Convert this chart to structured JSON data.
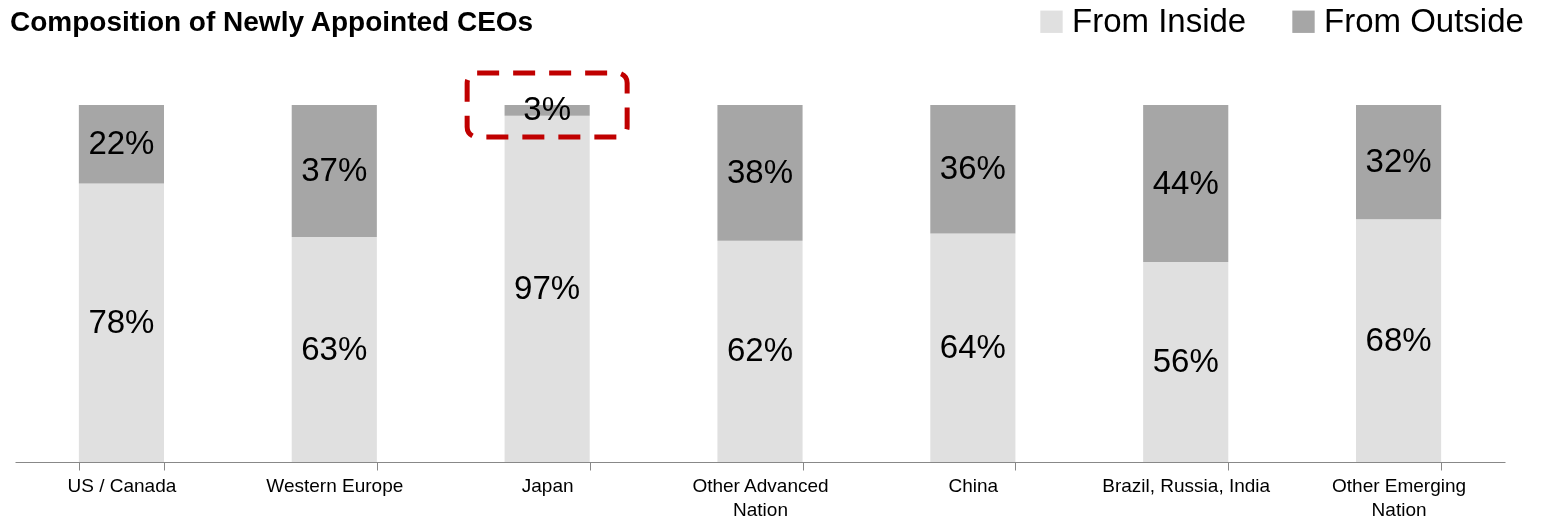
{
  "chart_data": {
    "type": "bar",
    "title": "Composition of Newly Appointed CEOs",
    "stacked": true,
    "legend": "top right",
    "grid": false,
    "categories": [
      "US / Canada",
      "Western Europe",
      "Japan",
      "Other Advanced\nNation",
      "China",
      "Brazil, Russia, India",
      "Other Emerging\nNation"
    ],
    "series": [
      {
        "name": "From Inside",
        "color": "#e0e0e0",
        "values": [
          78,
          63,
          97,
          62,
          64,
          56,
          68
        ],
        "value_labels": [
          "78%",
          "63%",
          "97%",
          "62%",
          "64%",
          "56%",
          "68%"
        ]
      },
      {
        "name": "From Outside",
        "color": "#a6a6a6",
        "values": [
          22,
          37,
          3,
          38,
          36,
          44,
          32
        ],
        "value_labels": [
          "22%",
          "37%",
          "3%",
          "38%",
          "36%",
          "44%",
          "32%"
        ]
      }
    ]
  }
}
